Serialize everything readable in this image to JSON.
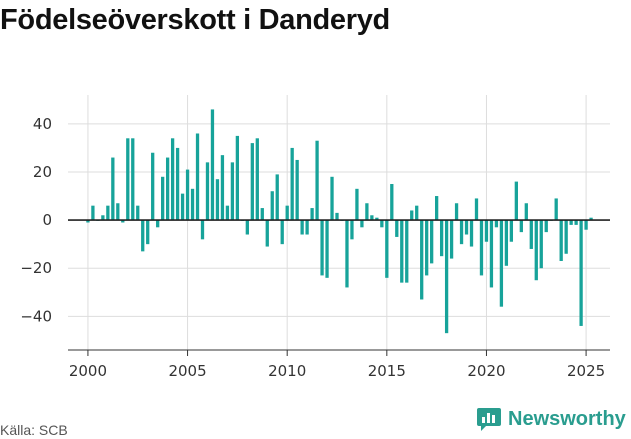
{
  "chart_data": {
    "type": "bar",
    "title": "Födelseöverskott i Danderyd",
    "xlabel": "",
    "ylabel": "",
    "xlim": [
      1999.0,
      2026.2
    ],
    "ylim": [
      -54,
      52
    ],
    "x_ticks": [
      "2000",
      "2005",
      "2010",
      "2015",
      "2020",
      "2025"
    ],
    "y_ticks": [
      "40",
      "20",
      "0",
      "−20",
      "−40"
    ],
    "x_tick_values": [
      2000,
      2005,
      2010,
      2015,
      2020,
      2025
    ],
    "y_tick_values": [
      40,
      20,
      0,
      -20,
      -40
    ],
    "grid": true,
    "bar_color": "#17a39a",
    "grid_color": "#dddddd",
    "zero_line_color": "#222222",
    "values": [
      -1,
      6,
      0,
      2,
      6,
      26,
      7,
      -1,
      34,
      34,
      6,
      -13,
      -10,
      28,
      -3,
      18,
      26,
      34,
      30,
      11,
      21,
      13,
      36,
      -8,
      24,
      46,
      17,
      27,
      6,
      24,
      35,
      0,
      -6,
      32,
      34,
      5,
      -11,
      12,
      19,
      -10,
      6,
      30,
      25,
      -6,
      -6,
      5,
      33,
      -23,
      -24,
      18,
      3,
      0,
      -28,
      -8,
      13,
      -3,
      7,
      2,
      1,
      -3,
      -24,
      15,
      -7,
      -26,
      -26,
      4,
      6,
      -33,
      -23,
      -18,
      10,
      -15,
      -47,
      -16,
      7,
      -10,
      -6,
      -11,
      9,
      -23,
      -9,
      -28,
      -3,
      -36,
      -19,
      -9,
      16,
      -5,
      7,
      -12,
      -25,
      -20,
      -5,
      0,
      9,
      -17,
      -14,
      -2,
      -2,
      -44,
      -4,
      1
    ]
  },
  "source": {
    "text": "Källa: SCB"
  },
  "brand": {
    "name": "Newsworthy",
    "icon": "bar-chart-speech-bubble-icon",
    "color": "#2a9d8f"
  }
}
